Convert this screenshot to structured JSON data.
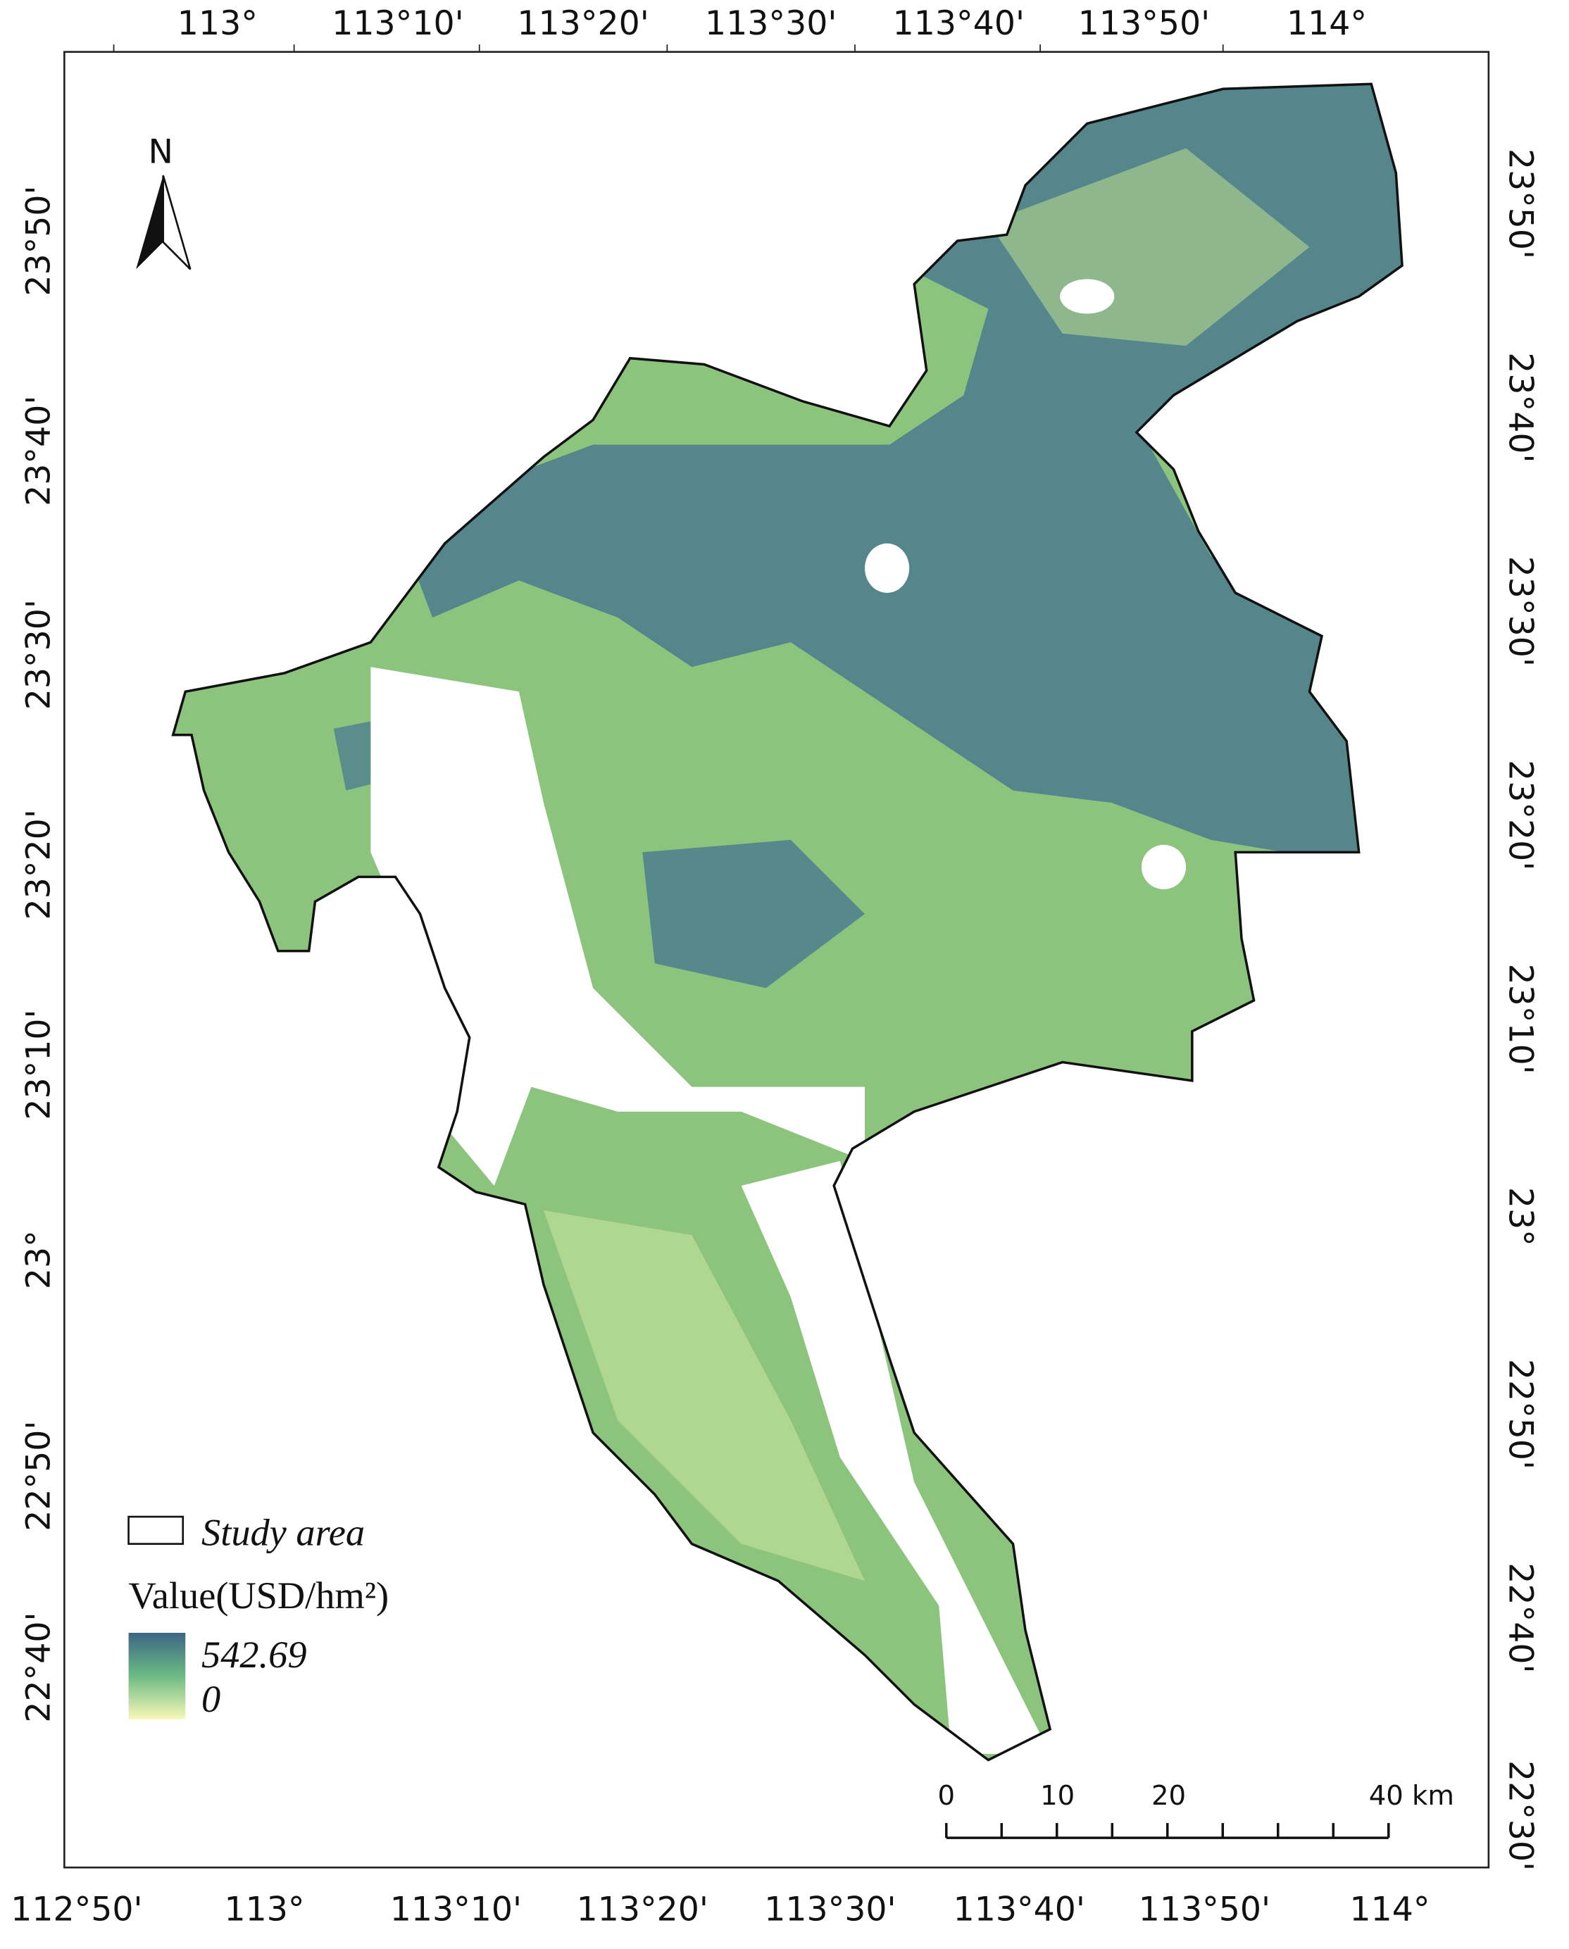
{
  "map": {
    "top_labels": [
      "113°",
      "113°10'",
      "113°20'",
      "113°30'",
      "113°40'",
      "113°50'",
      "114°"
    ],
    "bottom_labels": [
      "112°50'",
      "113°",
      "113°10'",
      "113°20'",
      "113°30'",
      "113°40'",
      "113°50'",
      "114°"
    ],
    "left_labels": [
      "23°50'",
      "23°40'",
      "23°30'",
      "23°20'",
      "23°10'",
      "23°",
      "22°50'",
      "22°40'"
    ],
    "right_labels": [
      "23°50'",
      "23°40'",
      "23°30'",
      "23°20'",
      "23°10'",
      "23°",
      "22°50'",
      "22°40'",
      "22°30'"
    ],
    "north": "N",
    "legend": {
      "boundary": "Study area",
      "title": "Value(USD/hm²)",
      "max": "542.69",
      "min": "0"
    },
    "scale_bar": [
      "0",
      "10",
      "20",
      "40 km"
    ]
  }
}
